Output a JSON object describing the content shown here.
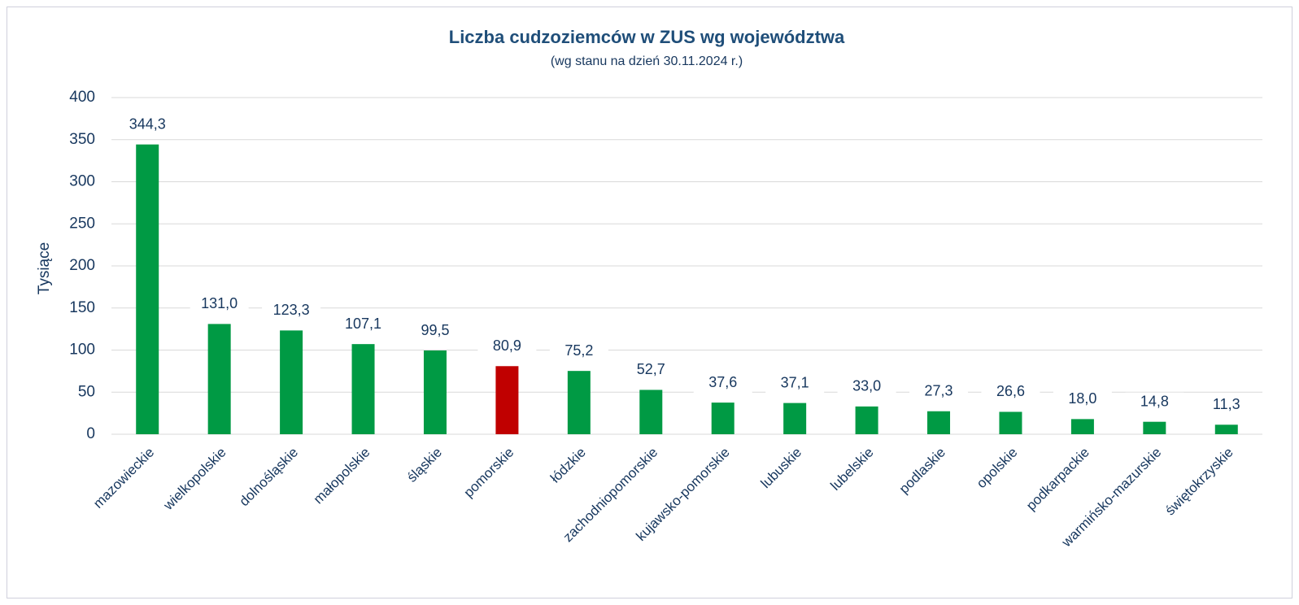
{
  "chart_data": {
    "type": "bar",
    "title": "Liczba cudzoziemców w ZUS wg województwa",
    "subtitle": "(wg stanu na dzień 30.11.2024 r.)",
    "y_label": "Tysiące",
    "categories": [
      "mazowieckie",
      "wielkopolskie",
      "dolnośląskie",
      "małopolskie",
      "śląskie",
      "pomorskie",
      "łódzkie",
      "zachodniopomorskie",
      "kujawsko-pomorskie",
      "lubuskie",
      "lubelskie",
      "podlaskie",
      "opolskie",
      "podkarpackie",
      "warmińsko-mazurskie",
      "świętokrzyskie"
    ],
    "values": [
      344.3,
      131.0,
      123.3,
      107.1,
      99.5,
      80.9,
      75.2,
      52.7,
      37.6,
      37.1,
      33.0,
      27.3,
      26.6,
      18.0,
      14.8,
      11.3
    ],
    "value_labels": [
      "344,3",
      "131,0",
      "123,3",
      "107,1",
      "99,5",
      "80,9",
      "75,2",
      "52,7",
      "37,6",
      "37,1",
      "33,0",
      "27,3",
      "26,6",
      "18,0",
      "14,8",
      "11,3"
    ],
    "colors": [
      "#009a44",
      "#009a44",
      "#009a44",
      "#009a44",
      "#009a44",
      "#c00000",
      "#009a44",
      "#009a44",
      "#009a44",
      "#009a44",
      "#009a44",
      "#009a44",
      "#009a44",
      "#009a44",
      "#009a44",
      "#009a44"
    ],
    "ylim": [
      0,
      400
    ],
    "yticks": [
      0,
      50,
      100,
      150,
      200,
      250,
      300,
      350,
      400
    ],
    "grid": true
  }
}
